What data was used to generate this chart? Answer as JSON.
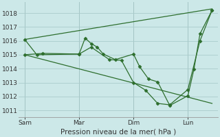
{
  "title": "",
  "xlabel": "Pression niveau de la mer( hPa )",
  "ylabel": "",
  "bg_color": "#cce8e8",
  "grid_color": "#aacccc",
  "line_color": "#2d6e2d",
  "ylim": [
    1010.5,
    1018.8
  ],
  "yticks": [
    1011,
    1012,
    1013,
    1014,
    1015,
    1016,
    1017,
    1018
  ],
  "day_labels": [
    "Sam",
    "Mar",
    "Dim",
    "Lun"
  ],
  "day_positions": [
    0,
    36,
    72,
    108
  ],
  "vline_positions": [
    0,
    36,
    72,
    108
  ],
  "xlim": [
    -4,
    128
  ],
  "series1_x": [
    0,
    8,
    36,
    40,
    44,
    48,
    52,
    60,
    72,
    76,
    82,
    88,
    96,
    108,
    112,
    116,
    124
  ],
  "series1_y": [
    1016.1,
    1015.0,
    1015.05,
    1016.2,
    1015.8,
    1015.55,
    1015.05,
    1014.65,
    1015.05,
    1014.15,
    1013.25,
    1013.05,
    1011.35,
    1012.05,
    1013.95,
    1016.5,
    1018.2
  ],
  "series2_x": [
    0,
    12,
    36,
    44,
    56,
    64,
    72,
    80,
    88,
    96,
    108,
    116,
    124
  ],
  "series2_y": [
    1015.0,
    1015.1,
    1015.05,
    1015.55,
    1014.65,
    1014.6,
    1013.0,
    1012.45,
    1011.5,
    1011.4,
    1012.5,
    1016.0,
    1018.2
  ],
  "series3_x": [
    0,
    124
  ],
  "series3_y": [
    1016.1,
    1018.3
  ],
  "series4_x": [
    0,
    124
  ],
  "series4_y": [
    1015.0,
    1011.5
  ]
}
